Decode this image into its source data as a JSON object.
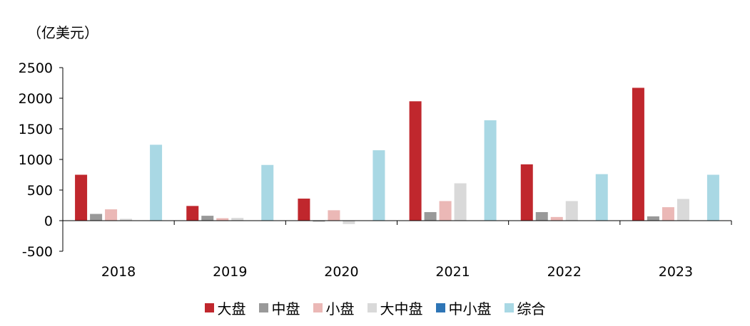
{
  "chart_data": {
    "type": "bar",
    "unit_label": "（亿美元）",
    "categories": [
      "2018",
      "2019",
      "2020",
      "2021",
      "2022",
      "2023"
    ],
    "series": [
      {
        "name": "大盘",
        "color": "#C0272D",
        "values": [
          750,
          240,
          360,
          1950,
          920,
          2170
        ]
      },
      {
        "name": "中盘",
        "color": "#999999",
        "values": [
          110,
          80,
          -15,
          140,
          140,
          70
        ]
      },
      {
        "name": "小盘",
        "color": "#EBB8B6",
        "values": [
          185,
          40,
          170,
          320,
          60,
          220
        ]
      },
      {
        "name": "大中盘",
        "color": "#D9D9D9",
        "values": [
          30,
          45,
          -55,
          610,
          320,
          355
        ]
      },
      {
        "name": "中小盘",
        "color": "#2E75B6",
        "values": [
          0,
          0,
          0,
          0,
          0,
          0
        ]
      },
      {
        "name": "综合",
        "color": "#A9D8E4",
        "values": [
          1240,
          910,
          1150,
          1640,
          760,
          750
        ]
      }
    ],
    "ylim": [
      -500,
      2500
    ],
    "yticks": [
      -500,
      0,
      500,
      1000,
      1500,
      2000,
      2500
    ],
    "ytick_labels": [
      "-500",
      "0",
      "500",
      "1000",
      "1500",
      "2000",
      "2500"
    ],
    "legend_position": "bottom",
    "grid": false
  }
}
